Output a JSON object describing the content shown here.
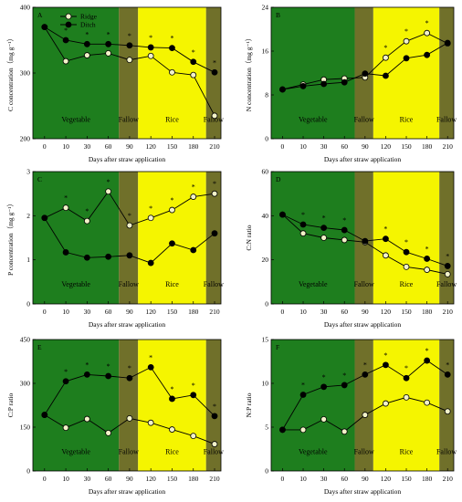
{
  "chart_data": [
    {
      "type": "line",
      "panel": "A",
      "ylabel": "C concentration（mg g⁻¹）",
      "xlabel": "Days after straw application",
      "categories": [
        "0",
        "10",
        "30",
        "60",
        "90",
        "120",
        "150",
        "180",
        "210"
      ],
      "ylim": [
        200,
        400
      ],
      "yticks": [
        "200",
        "300",
        "400"
      ],
      "ytick_values": [
        200,
        300,
        400
      ],
      "series": [
        {
          "name": "Ridge",
          "marker": "open",
          "values": [
            370,
            318,
            327,
            330,
            320,
            326,
            301,
            297,
            235
          ]
        },
        {
          "name": "Ditch",
          "marker": "filled",
          "values": [
            370,
            350,
            344,
            344,
            342,
            339,
            338,
            317,
            301
          ]
        }
      ],
      "stars": [
        1,
        2,
        3,
        4,
        5,
        6,
        7,
        8
      ],
      "phases": [
        {
          "label": "Vegetable",
          "from": -0.55,
          "to": 3.5,
          "color": "#1e7e1e"
        },
        {
          "label": "Fallow",
          "from": 3.5,
          "to": 4.4,
          "color": "#70702a"
        },
        {
          "label": "Rice",
          "from": 4.4,
          "to": 7.6,
          "color": "#f5f500"
        },
        {
          "label": "Fallow",
          "from": 7.6,
          "to": 8.3,
          "color": "#70702a"
        }
      ],
      "legend": {
        "show": true,
        "entries": [
          "Ridge",
          "Ditch"
        ]
      }
    },
    {
      "type": "line",
      "panel": "B",
      "ylabel": "N concentration（mg g⁻¹）",
      "xlabel": "Days after straw application",
      "categories": [
        "0",
        "10",
        "30",
        "60",
        "90",
        "120",
        "150",
        "180",
        "210"
      ],
      "ylim": [
        0,
        24
      ],
      "yticks": [
        "0",
        "8",
        "16",
        "24"
      ],
      "ytick_values": [
        0,
        8,
        16,
        24
      ],
      "series": [
        {
          "name": "Ridge",
          "marker": "open",
          "values": [
            9.0,
            9.9,
            10.8,
            11.0,
            11.2,
            14.8,
            17.8,
            19.3,
            17.4
          ]
        },
        {
          "name": "Ditch",
          "marker": "filled",
          "values": [
            9.0,
            9.6,
            10.0,
            10.3,
            11.9,
            11.5,
            14.7,
            15.3,
            17.5
          ]
        }
      ],
      "stars": [
        5,
        6,
        7
      ],
      "phases": [
        {
          "label": "Vegetable",
          "from": -0.55,
          "to": 3.5,
          "color": "#1e7e1e"
        },
        {
          "label": "Fallow",
          "from": 3.5,
          "to": 4.4,
          "color": "#70702a"
        },
        {
          "label": "Rice",
          "from": 4.4,
          "to": 7.6,
          "color": "#f5f500"
        },
        {
          "label": "Fallow",
          "from": 7.6,
          "to": 8.3,
          "color": "#70702a"
        }
      ],
      "legend": {
        "show": false
      }
    },
    {
      "type": "line",
      "panel": "C",
      "ylabel": "P concentration（mg g⁻¹）",
      "xlabel": "Days after straw application",
      "categories": [
        "0",
        "10",
        "30",
        "60",
        "90",
        "120",
        "150",
        "180",
        "210"
      ],
      "ylim": [
        0,
        3
      ],
      "yticks": [
        "0",
        "1",
        "2",
        "3"
      ],
      "ytick_values": [
        0,
        1,
        2,
        3
      ],
      "series": [
        {
          "name": "Ridge",
          "marker": "open",
          "values": [
            1.95,
            2.18,
            1.88,
            2.55,
            1.78,
            1.95,
            2.13,
            2.43,
            2.5
          ]
        },
        {
          "name": "Ditch",
          "marker": "filled",
          "values": [
            1.95,
            1.17,
            1.05,
            1.07,
            1.1,
            0.93,
            1.37,
            1.22,
            1.6
          ]
        }
      ],
      "stars": [
        1,
        2,
        3,
        4,
        5,
        6,
        7,
        8
      ],
      "phases": [
        {
          "label": "Vegetable",
          "from": -0.55,
          "to": 3.5,
          "color": "#1e7e1e"
        },
        {
          "label": "Fallow",
          "from": 3.5,
          "to": 4.4,
          "color": "#70702a"
        },
        {
          "label": "Rice",
          "from": 4.4,
          "to": 7.6,
          "color": "#f5f500"
        },
        {
          "label": "Fallow",
          "from": 7.6,
          "to": 8.3,
          "color": "#70702a"
        }
      ],
      "legend": {
        "show": false
      }
    },
    {
      "type": "line",
      "panel": "D",
      "ylabel": "C:N ratio",
      "xlabel": "Days after straw application",
      "categories": [
        "0",
        "10",
        "30",
        "60",
        "90",
        "120",
        "150",
        "180",
        "210"
      ],
      "ylim": [
        0,
        60
      ],
      "yticks": [
        "0",
        "20",
        "40",
        "60"
      ],
      "ytick_values": [
        0,
        20,
        40,
        60
      ],
      "series": [
        {
          "name": "Ridge",
          "marker": "open",
          "values": [
            40.5,
            32.0,
            30.0,
            29.0,
            28.0,
            22.0,
            16.8,
            15.5,
            13.5
          ]
        },
        {
          "name": "Ditch",
          "marker": "filled",
          "values": [
            40.5,
            36.0,
            34.5,
            33.5,
            28.5,
            29.5,
            23.5,
            20.5,
            17.2
          ]
        }
      ],
      "stars": [
        1,
        2,
        3,
        5,
        6,
        7,
        8
      ],
      "phases": [
        {
          "label": "Vegetable",
          "from": -0.55,
          "to": 3.5,
          "color": "#1e7e1e"
        },
        {
          "label": "Fallow",
          "from": 3.5,
          "to": 4.4,
          "color": "#70702a"
        },
        {
          "label": "Rice",
          "from": 4.4,
          "to": 7.6,
          "color": "#f5f500"
        },
        {
          "label": "Fallow",
          "from": 7.6,
          "to": 8.3,
          "color": "#70702a"
        }
      ],
      "legend": {
        "show": false
      }
    },
    {
      "type": "line",
      "panel": "E",
      "ylabel": "C:P ratio",
      "xlabel": "Days after straw application",
      "categories": [
        "0",
        "10",
        "30",
        "60",
        "90",
        "120",
        "150",
        "180",
        "210"
      ],
      "ylim": [
        0,
        450
      ],
      "yticks": [
        "0",
        "150",
        "300",
        "450"
      ],
      "ytick_values": [
        0,
        150,
        300,
        450
      ],
      "series": [
        {
          "name": "Ridge",
          "marker": "open",
          "values": [
            192,
            148,
            178,
            130,
            180,
            165,
            142,
            120,
            92
          ]
        },
        {
          "name": "Ditch",
          "marker": "filled",
          "values": [
            192,
            307,
            330,
            325,
            318,
            355,
            247,
            260,
            188
          ]
        }
      ],
      "stars": [
        1,
        2,
        3,
        4,
        5,
        6,
        7,
        8
      ],
      "phases": [
        {
          "label": "Vegetable",
          "from": -0.55,
          "to": 3.5,
          "color": "#1e7e1e"
        },
        {
          "label": "Fallow",
          "from": 3.5,
          "to": 4.4,
          "color": "#70702a"
        },
        {
          "label": "Rice",
          "from": 4.4,
          "to": 7.6,
          "color": "#f5f500"
        },
        {
          "label": "Fallow",
          "from": 7.6,
          "to": 8.3,
          "color": "#70702a"
        }
      ],
      "legend": {
        "show": false
      }
    },
    {
      "type": "line",
      "panel": "F",
      "ylabel": "N:P ratio",
      "xlabel": "Days after straw application",
      "categories": [
        "0",
        "10",
        "30",
        "60",
        "90",
        "120",
        "150",
        "180",
        "210"
      ],
      "ylim": [
        0,
        15
      ],
      "yticks": [
        "0",
        "5",
        "10",
        "15"
      ],
      "ytick_values": [
        0,
        5,
        10,
        15
      ],
      "series": [
        {
          "name": "Ridge",
          "marker": "open",
          "values": [
            4.7,
            4.7,
            5.9,
            4.5,
            6.4,
            7.7,
            8.4,
            7.8,
            6.8
          ]
        },
        {
          "name": "Ditch",
          "marker": "filled",
          "values": [
            4.7,
            8.7,
            9.6,
            9.8,
            11.0,
            12.1,
            10.6,
            12.6,
            11.0
          ]
        }
      ],
      "stars": [
        1,
        2,
        3,
        4,
        5,
        6,
        7,
        8
      ],
      "phases": [
        {
          "label": "Vegetable",
          "from": -0.55,
          "to": 3.5,
          "color": "#1e7e1e"
        },
        {
          "label": "Fallow",
          "from": 3.5,
          "to": 4.4,
          "color": "#70702a"
        },
        {
          "label": "Rice",
          "from": 4.4,
          "to": 7.6,
          "color": "#f5f500"
        },
        {
          "label": "Fallow",
          "from": 7.6,
          "to": 8.3,
          "color": "#70702a"
        }
      ],
      "legend": {
        "show": false
      }
    }
  ]
}
